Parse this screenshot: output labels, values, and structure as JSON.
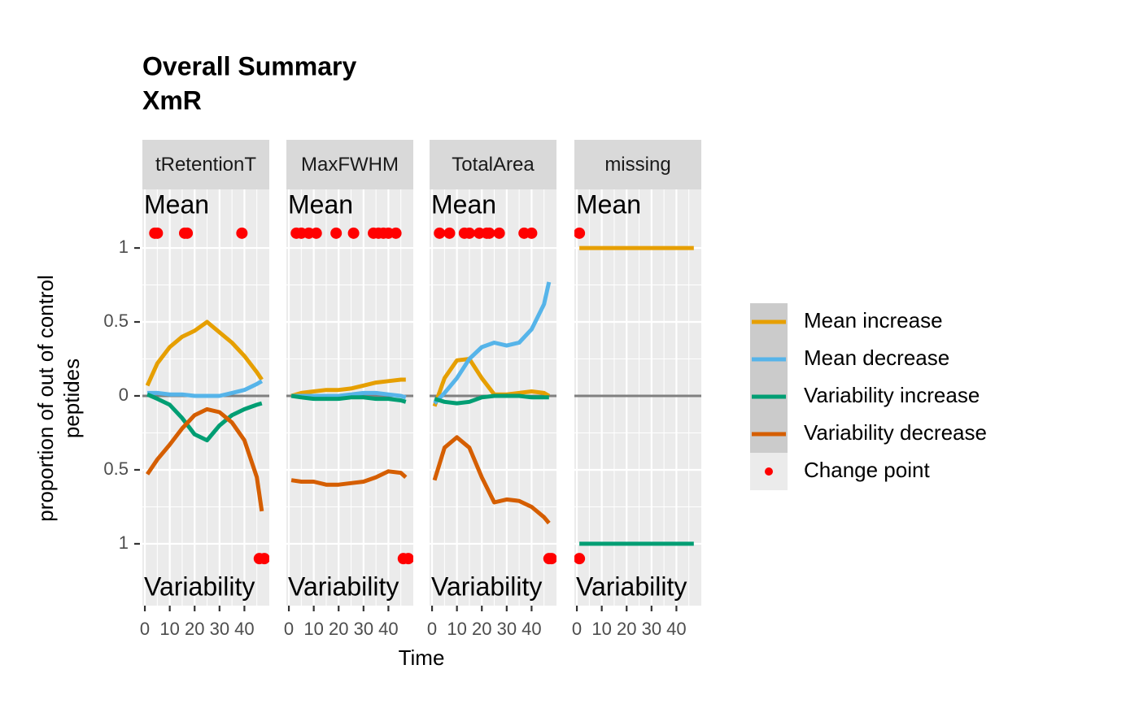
{
  "chart_data": {
    "type": "line",
    "title": [
      "Overall Summary",
      "XmR"
    ],
    "x_label": "Time",
    "y_label": [
      "proportion of out of control",
      "peptides"
    ],
    "xlim": [
      -1,
      50
    ],
    "xticks": [
      0,
      10,
      20,
      30,
      40
    ],
    "ylim": [
      -1.418,
      1.396
    ],
    "yticks": [
      1,
      0.5,
      0,
      {
        "value": -0.5,
        "label": "0.5"
      },
      {
        "value": -1,
        "label": "1"
      }
    ],
    "grid": true,
    "zero_line": 0,
    "legend_position": "right",
    "series": [
      {
        "name": "Mean increase",
        "color": "#E69F00"
      },
      {
        "name": "Mean decrease",
        "color": "#56B4E9"
      },
      {
        "name": "Variability increase",
        "color": "#009E73"
      },
      {
        "name": "Variability decrease",
        "color": "#D55E00"
      }
    ],
    "change_point": {
      "name": "Change point",
      "color": "#FF0000",
      "y": [
        1.1,
        -1.1
      ]
    },
    "panels": [
      {
        "strip": "tRetentionT",
        "top_label": "Mean",
        "bottom_label": "Variability",
        "x": [
          1,
          5,
          10,
          15,
          20,
          25,
          30,
          35,
          40,
          45,
          47
        ],
        "lines": [
          [
            0.07,
            0.22,
            0.33,
            0.4,
            0.44,
            0.5,
            0.43,
            0.36,
            0.27,
            0.16,
            0.11
          ],
          [
            0.02,
            0.02,
            0.01,
            0.01,
            0.0,
            0.0,
            0.0,
            0.02,
            0.04,
            0.08,
            0.1
          ],
          [
            0.01,
            -0.02,
            -0.06,
            -0.15,
            -0.26,
            -0.3,
            -0.2,
            -0.13,
            -0.09,
            -0.06,
            -0.05
          ],
          [
            -0.53,
            -0.43,
            -0.33,
            -0.22,
            -0.13,
            -0.09,
            -0.11,
            -0.18,
            -0.3,
            -0.55,
            -0.78
          ]
        ],
        "change_points_mean": [
          4,
          5,
          16,
          17,
          39
        ],
        "change_points_variability": [
          46,
          48
        ]
      },
      {
        "strip": "MaxFWHM",
        "top_label": "Mean",
        "bottom_label": "Variability",
        "x": [
          1,
          5,
          10,
          15,
          20,
          25,
          30,
          35,
          40,
          45,
          47
        ],
        "lines": [
          [
            0.0,
            0.02,
            0.03,
            0.04,
            0.04,
            0.05,
            0.07,
            0.09,
            0.1,
            0.11,
            0.11
          ],
          [
            0.0,
            0.0,
            0.0,
            0.0,
            0.0,
            0.01,
            0.02,
            0.02,
            0.01,
            0.0,
            -0.01
          ],
          [
            0.0,
            -0.01,
            -0.02,
            -0.02,
            -0.02,
            -0.01,
            -0.01,
            -0.02,
            -0.02,
            -0.03,
            -0.04
          ],
          [
            -0.57,
            -0.58,
            -0.58,
            -0.6,
            -0.6,
            -0.59,
            -0.58,
            -0.55,
            -0.51,
            -0.52,
            -0.55
          ]
        ],
        "change_points_mean": [
          3,
          5,
          8,
          11,
          19,
          26,
          34,
          36,
          38,
          40,
          43
        ],
        "change_points_variability": [
          46,
          48
        ]
      },
      {
        "strip": "TotalArea",
        "top_label": "Mean",
        "bottom_label": "Variability",
        "x": [
          1,
          5,
          10,
          15,
          20,
          25,
          30,
          35,
          40,
          45,
          47
        ],
        "lines": [
          [
            -0.07,
            0.12,
            0.24,
            0.25,
            0.12,
            0.01,
            0.01,
            0.02,
            0.03,
            0.02,
            0.0
          ],
          [
            -0.05,
            0.02,
            0.12,
            0.25,
            0.33,
            0.36,
            0.34,
            0.36,
            0.45,
            0.62,
            0.77
          ],
          [
            -0.02,
            -0.04,
            -0.05,
            -0.04,
            -0.01,
            0.0,
            0.0,
            0.0,
            -0.01,
            -0.01,
            -0.01
          ],
          [
            -0.57,
            -0.35,
            -0.28,
            -0.35,
            -0.55,
            -0.72,
            -0.7,
            -0.71,
            -0.75,
            -0.82,
            -0.86
          ]
        ],
        "change_points_mean": [
          3,
          7,
          13,
          15,
          19,
          22,
          23,
          27,
          37,
          40
        ],
        "change_points_variability": [
          47,
          48
        ]
      },
      {
        "strip": "missing",
        "top_label": "Mean",
        "bottom_label": "Variability",
        "x": [
          1,
          47
        ],
        "lines": [
          [
            1,
            1
          ],
          [
            null,
            null
          ],
          [
            -1,
            -1
          ],
          [
            null,
            null
          ]
        ],
        "change_points_mean": [
          1
        ],
        "change_points_variability": [
          1
        ]
      }
    ]
  }
}
